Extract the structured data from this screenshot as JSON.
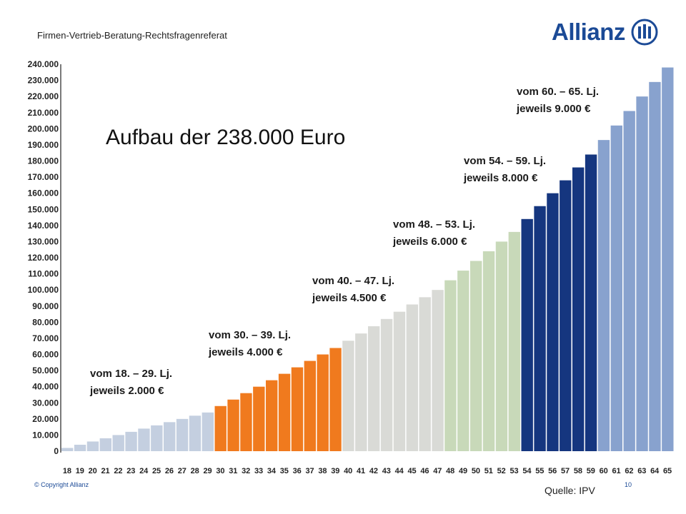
{
  "header": {
    "title": "Firmen-Vertrieb-Beratung-Rechtsfragenreferat"
  },
  "logo": {
    "text": "Allianz",
    "icon": "allianz-eagle-icon"
  },
  "main_title": "Aufbau der 238.000 Euro",
  "annotations": [
    {
      "line1": "vom 18. – 29. Lj.",
      "line2": "jeweils 2.000 €"
    },
    {
      "line1": "vom 30. – 39. Lj.",
      "line2": "jeweils 4.000 €"
    },
    {
      "line1": "vom 40. – 47. Lj.",
      "line2": "jeweils 4.500 €"
    },
    {
      "line1": "vom 48. – 53. Lj.",
      "line2": "jeweils 6.000 €"
    },
    {
      "line1": "vom 54. – 59. Lj.",
      "line2": "jeweils 8.000 €"
    },
    {
      "line1": "vom 60. – 65. Lj.",
      "line2": "jeweils 9.000 €"
    }
  ],
  "footer": {
    "copyright": "© Copyright Allianz",
    "page": "10",
    "source": "Quelle: IPV"
  },
  "chart_data": {
    "type": "bar",
    "categories": [
      "18",
      "19",
      "20",
      "21",
      "22",
      "23",
      "24",
      "25",
      "26",
      "27",
      "28",
      "29",
      "30",
      "31",
      "32",
      "33",
      "34",
      "35",
      "36",
      "37",
      "38",
      "39",
      "40",
      "41",
      "42",
      "43",
      "44",
      "45",
      "46",
      "47",
      "48",
      "49",
      "50",
      "51",
      "52",
      "53",
      "54",
      "55",
      "56",
      "57",
      "58",
      "59",
      "60",
      "61",
      "62",
      "63",
      "64",
      "65"
    ],
    "values": [
      2000,
      4000,
      6000,
      8000,
      10000,
      12000,
      14000,
      16000,
      18000,
      20000,
      22000,
      24000,
      28000,
      32000,
      36000,
      40000,
      44000,
      48000,
      52000,
      56000,
      60000,
      64000,
      68500,
      73000,
      77500,
      82000,
      86500,
      91000,
      95500,
      100000,
      106000,
      112000,
      118000,
      124000,
      130000,
      136000,
      144000,
      152000,
      160000,
      168000,
      176000,
      184000,
      193000,
      202000,
      211000,
      220000,
      229000,
      238000
    ],
    "bar_colors": [
      "#c4cfe0",
      "#c4cfe0",
      "#c4cfe0",
      "#c4cfe0",
      "#c4cfe0",
      "#c4cfe0",
      "#c4cfe0",
      "#c4cfe0",
      "#c4cfe0",
      "#c4cfe0",
      "#c4cfe0",
      "#c4cfe0",
      "#f07a1e",
      "#f07a1e",
      "#f07a1e",
      "#f07a1e",
      "#f07a1e",
      "#f07a1e",
      "#f07a1e",
      "#f07a1e",
      "#f07a1e",
      "#f07a1e",
      "#d9dad6",
      "#d9dad6",
      "#d9dad6",
      "#d9dad6",
      "#d9dad6",
      "#d9dad6",
      "#d9dad6",
      "#d9dad6",
      "#c8d9b9",
      "#c8d9b9",
      "#c8d9b9",
      "#c8d9b9",
      "#c8d9b9",
      "#c8d9b9",
      "#15367f",
      "#15367f",
      "#15367f",
      "#15367f",
      "#15367f",
      "#15367f",
      "#88a2ce",
      "#88a2ce",
      "#88a2ce",
      "#88a2ce",
      "#88a2ce",
      "#88a2ce"
    ],
    "y_ticks": [
      0,
      10000,
      20000,
      30000,
      40000,
      50000,
      60000,
      70000,
      80000,
      90000,
      100000,
      110000,
      120000,
      130000,
      140000,
      150000,
      160000,
      170000,
      180000,
      190000,
      200000,
      210000,
      220000,
      230000,
      240000
    ],
    "y_tick_labels": [
      "0",
      "10.000",
      "20.000",
      "30.000",
      "40.000",
      "50.000",
      "60.000",
      "70.000",
      "80.000",
      "90.000",
      "100.000",
      "110.000",
      "120.000",
      "130.000",
      "140.000",
      "150.000",
      "160.000",
      "170.000",
      "180.000",
      "190.000",
      "200.000",
      "210.000",
      "220.000",
      "230.000",
      "240.000"
    ],
    "ylim": [
      0,
      240000
    ],
    "grid": false,
    "legend": "none"
  }
}
